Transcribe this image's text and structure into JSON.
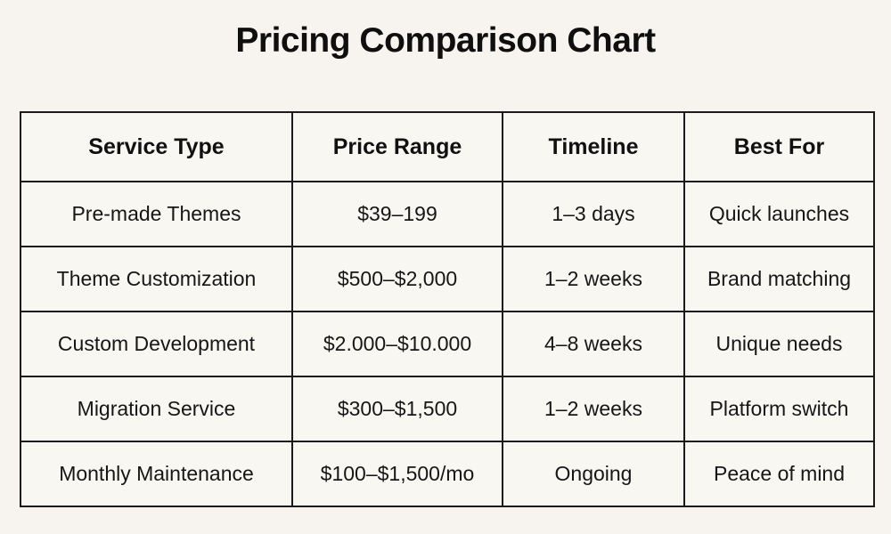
{
  "page": {
    "title": "Pricing Comparison Chart",
    "background_color": "#f7f4ef",
    "border_color": "#1a1a1a",
    "text_color": "#131313"
  },
  "chart_data": {
    "type": "table",
    "title": "Pricing Comparison Chart",
    "columns": [
      "Service Type",
      "Price Range",
      "Timeline",
      "Best For"
    ],
    "rows": [
      [
        "Pre-made Themes",
        "$39–199",
        "1–3 days",
        "Quick launches"
      ],
      [
        "Theme Customization",
        "$500–$2,000",
        "1–2 weeks",
        "Brand matching"
      ],
      [
        "Custom Development",
        "$2.000–$10.000",
        "4–8 weeks",
        "Unique needs"
      ],
      [
        "Migration Service",
        "$300–$1,500",
        "1–2 weeks",
        "Platform switch"
      ],
      [
        "Monthly Maintenance",
        "$100–$1,500/mo",
        "Ongoing",
        "Peace of mind"
      ]
    ]
  }
}
